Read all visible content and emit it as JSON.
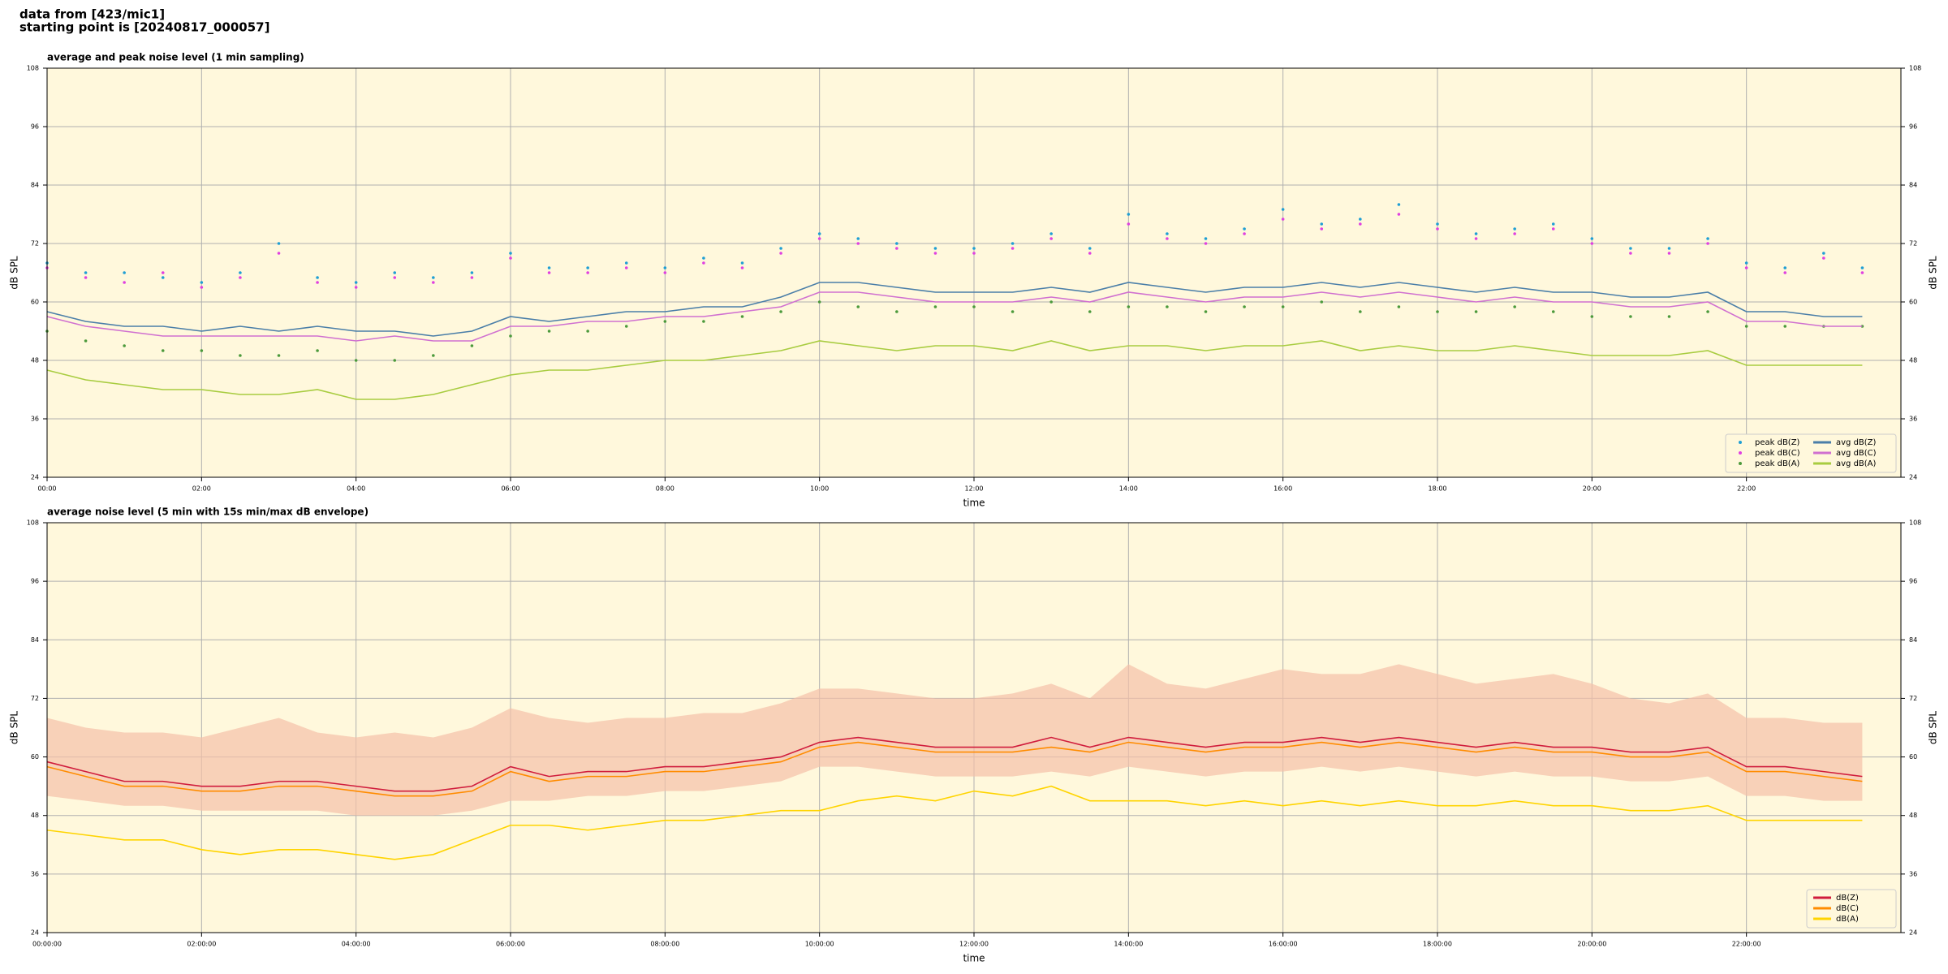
{
  "header": [
    "data from [423/mic1]",
    "starting point is [20240817_000057]"
  ],
  "chart_data": [
    {
      "type": "line",
      "title": "average and peak noise level (1 min sampling)",
      "xlabel": "time",
      "ylabel": "dB SPL",
      "background": "#fff8dc",
      "grid": true,
      "legend": "lower right",
      "x": [
        "00:00",
        "00:30",
        "01:00",
        "01:30",
        "02:00",
        "02:30",
        "03:00",
        "03:30",
        "04:00",
        "04:30",
        "05:00",
        "05:30",
        "06:00",
        "06:30",
        "07:00",
        "07:30",
        "08:00",
        "08:30",
        "09:00",
        "09:30",
        "10:00",
        "10:30",
        "11:00",
        "11:30",
        "12:00",
        "12:30",
        "13:00",
        "13:30",
        "14:00",
        "14:30",
        "15:00",
        "15:30",
        "16:00",
        "16:30",
        "17:00",
        "17:30",
        "18:00",
        "18:30",
        "19:00",
        "19:30",
        "20:00",
        "20:30",
        "21:00",
        "21:30",
        "22:00",
        "22:30",
        "23:00",
        "23:30"
      ],
      "xlim": [
        "00:00",
        "24:00"
      ],
      "xticks": [
        "00:00",
        "02:00",
        "04:00",
        "06:00",
        "08:00",
        "10:00",
        "12:00",
        "14:00",
        "16:00",
        "18:00",
        "20:00",
        "22:00"
      ],
      "ylim": [
        24,
        108
      ],
      "yticks": [
        24,
        36,
        48,
        60,
        72,
        84,
        96,
        108
      ],
      "series": [
        {
          "name": "peak dB(Z)",
          "color": "#1f9fd4",
          "marker": true,
          "values": [
            68,
            66,
            66,
            65,
            64,
            66,
            72,
            65,
            64,
            66,
            65,
            66,
            70,
            67,
            67,
            68,
            67,
            69,
            68,
            71,
            74,
            73,
            72,
            71,
            71,
            72,
            74,
            71,
            78,
            74,
            73,
            75,
            79,
            76,
            77,
            80,
            76,
            74,
            75,
            76,
            73,
            71,
            71,
            73,
            68,
            67,
            70,
            67
          ]
        },
        {
          "name": "peak dB(C)",
          "color": "#e040e0",
          "marker": true,
          "values": [
            67,
            65,
            64,
            66,
            63,
            65,
            70,
            64,
            63,
            65,
            64,
            65,
            69,
            66,
            66,
            67,
            66,
            68,
            67,
            70,
            73,
            72,
            71,
            70,
            70,
            71,
            73,
            70,
            76,
            73,
            72,
            74,
            77,
            75,
            76,
            78,
            75,
            73,
            74,
            75,
            72,
            70,
            70,
            72,
            67,
            66,
            69,
            66
          ]
        },
        {
          "name": "peak dB(A)",
          "color": "#4c9a3c",
          "marker": true,
          "values": [
            54,
            52,
            51,
            50,
            50,
            49,
            49,
            50,
            48,
            48,
            49,
            51,
            53,
            54,
            54,
            55,
            56,
            56,
            57,
            58,
            60,
            59,
            58,
            59,
            59,
            58,
            60,
            58,
            59,
            59,
            58,
            59,
            59,
            60,
            58,
            59,
            58,
            58,
            59,
            58,
            57,
            57,
            57,
            58,
            55,
            55,
            55,
            55
          ]
        },
        {
          "name": "avg dB(Z)",
          "color": "#4a7ea8",
          "values": [
            58,
            56,
            55,
            55,
            54,
            55,
            54,
            55,
            54,
            54,
            53,
            54,
            57,
            56,
            57,
            58,
            58,
            59,
            59,
            61,
            64,
            64,
            63,
            62,
            62,
            62,
            63,
            62,
            64,
            63,
            62,
            63,
            63,
            64,
            63,
            64,
            63,
            62,
            63,
            62,
            62,
            61,
            61,
            62,
            58,
            58,
            57,
            57
          ]
        },
        {
          "name": "avg dB(C)",
          "color": "#d070d0",
          "values": [
            57,
            55,
            54,
            53,
            53,
            53,
            53,
            53,
            52,
            53,
            52,
            52,
            55,
            55,
            56,
            56,
            57,
            57,
            58,
            59,
            62,
            62,
            61,
            60,
            60,
            60,
            61,
            60,
            62,
            61,
            60,
            61,
            61,
            62,
            61,
            62,
            61,
            60,
            61,
            60,
            60,
            59,
            59,
            60,
            56,
            56,
            55,
            55
          ]
        },
        {
          "name": "avg dB(A)",
          "color": "#a8cc40",
          "values": [
            46,
            44,
            43,
            42,
            42,
            41,
            41,
            42,
            40,
            40,
            41,
            43,
            45,
            46,
            46,
            47,
            48,
            48,
            49,
            50,
            52,
            51,
            50,
            51,
            51,
            50,
            52,
            50,
            51,
            51,
            50,
            51,
            51,
            52,
            50,
            51,
            50,
            50,
            51,
            50,
            49,
            49,
            49,
            50,
            47,
            47,
            47,
            47
          ]
        }
      ]
    },
    {
      "type": "line",
      "title": "average noise level (5 min with 15s min/max dB envelope)",
      "xlabel": "time",
      "ylabel": "dB SPL",
      "background": "#fff8dc",
      "grid": true,
      "legend": "lower right",
      "x": [
        "00:00:00",
        "00:30:00",
        "01:00:00",
        "01:30:00",
        "02:00:00",
        "02:30:00",
        "03:00:00",
        "03:30:00",
        "04:00:00",
        "04:30:00",
        "05:00:00",
        "05:30:00",
        "06:00:00",
        "06:30:00",
        "07:00:00",
        "07:30:00",
        "08:00:00",
        "08:30:00",
        "09:00:00",
        "09:30:00",
        "10:00:00",
        "10:30:00",
        "11:00:00",
        "11:30:00",
        "12:00:00",
        "12:30:00",
        "13:00:00",
        "13:30:00",
        "14:00:00",
        "14:30:00",
        "15:00:00",
        "15:30:00",
        "16:00:00",
        "16:30:00",
        "17:00:00",
        "17:30:00",
        "18:00:00",
        "18:30:00",
        "19:00:00",
        "19:30:00",
        "20:00:00",
        "20:30:00",
        "21:00:00",
        "21:30:00",
        "22:00:00",
        "22:30:00",
        "23:00:00",
        "23:30:00"
      ],
      "xlim": [
        "00:00:00",
        "24:00:00"
      ],
      "xticks": [
        "00:00:00",
        "02:00:00",
        "04:00:00",
        "06:00:00",
        "08:00:00",
        "10:00:00",
        "12:00:00",
        "14:00:00",
        "16:00:00",
        "18:00:00",
        "20:00:00",
        "22:00:00"
      ],
      "ylim": [
        24,
        108
      ],
      "yticks": [
        24,
        36,
        48,
        60,
        72,
        84,
        96,
        108
      ],
      "band": {
        "color": "#f5c0a8",
        "low": [
          52,
          51,
          50,
          50,
          49,
          49,
          49,
          49,
          48,
          48,
          48,
          49,
          51,
          51,
          52,
          52,
          53,
          53,
          54,
          55,
          58,
          58,
          57,
          56,
          56,
          56,
          57,
          56,
          58,
          57,
          56,
          57,
          57,
          58,
          57,
          58,
          57,
          56,
          57,
          56,
          56,
          55,
          55,
          56,
          52,
          52,
          51,
          51
        ],
        "high": [
          68,
          66,
          65,
          65,
          64,
          66,
          68,
          65,
          64,
          65,
          64,
          66,
          70,
          68,
          67,
          68,
          68,
          69,
          69,
          71,
          74,
          74,
          73,
          72,
          72,
          73,
          75,
          72,
          79,
          75,
          74,
          76,
          78,
          77,
          77,
          79,
          77,
          75,
          76,
          77,
          75,
          72,
          71,
          73,
          68,
          68,
          67,
          67
        ]
      },
      "series": [
        {
          "name": "dB(Z)",
          "color": "#d01c3c",
          "values": [
            59,
            57,
            55,
            55,
            54,
            54,
            55,
            55,
            54,
            53,
            53,
            54,
            58,
            56,
            57,
            57,
            58,
            58,
            59,
            60,
            63,
            64,
            63,
            62,
            62,
            62,
            64,
            62,
            64,
            63,
            62,
            63,
            63,
            64,
            63,
            64,
            63,
            62,
            63,
            62,
            62,
            61,
            61,
            62,
            58,
            58,
            57,
            56
          ]
        },
        {
          "name": "dB(C)",
          "color": "#ff8c00",
          "values": [
            58,
            56,
            54,
            54,
            53,
            53,
            54,
            54,
            53,
            52,
            52,
            53,
            57,
            55,
            56,
            56,
            57,
            57,
            58,
            59,
            62,
            63,
            62,
            61,
            61,
            61,
            62,
            61,
            63,
            62,
            61,
            62,
            62,
            63,
            62,
            63,
            62,
            61,
            62,
            61,
            61,
            60,
            60,
            61,
            57,
            57,
            56,
            55
          ]
        },
        {
          "name": "dB(A)",
          "color": "#ffd400",
          "values": [
            45,
            44,
            43,
            43,
            41,
            40,
            41,
            41,
            40,
            39,
            40,
            43,
            46,
            46,
            45,
            46,
            47,
            47,
            48,
            49,
            49,
            51,
            52,
            51,
            53,
            52,
            54,
            51,
            51,
            51,
            50,
            51,
            50,
            51,
            50,
            51,
            50,
            50,
            51,
            50,
            50,
            49,
            49,
            50,
            47,
            47,
            47,
            47
          ]
        }
      ]
    }
  ]
}
